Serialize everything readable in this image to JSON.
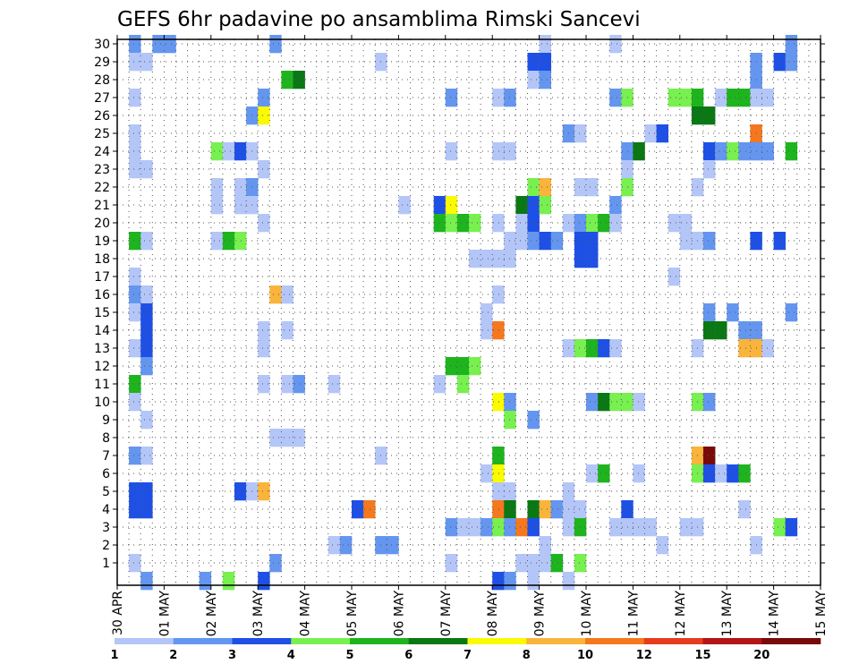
{
  "chart_data": {
    "type": "heatmap",
    "title": "GEFS 6hr padavine po ansamblima Rimski Sancevi",
    "xlabel": "",
    "ylabel": "",
    "x_ticks": [
      "30 APR",
      "01 MAY",
      "02 MAY",
      "03 MAY",
      "04 MAY",
      "05 MAY",
      "06 MAY",
      "07 MAY",
      "08 MAY",
      "09 MAY",
      "10 MAY",
      "11 MAY",
      "12 MAY",
      "13 MAY",
      "14 MAY",
      "15 MAY"
    ],
    "y_ticks": [
      "1",
      "2",
      "3",
      "4",
      "5",
      "6",
      "7",
      "8",
      "9",
      "10",
      "11",
      "12",
      "13",
      "14",
      "15",
      "16",
      "17",
      "18",
      "19",
      "20",
      "21",
      "22",
      "23",
      "24",
      "25",
      "26",
      "27",
      "28",
      "29",
      "30"
    ],
    "time_steps_per_day": 4,
    "ensemble_range": [
      0,
      30
    ],
    "grid": true,
    "legend_position": "bottom",
    "legend": {
      "colors": [
        "#b4c6f8",
        "#6496f0",
        "#1e50e6",
        "#78f050",
        "#1eb41e",
        "#0a7814",
        "#fafa00",
        "#fab43c",
        "#f5781e",
        "#e63c1e",
        "#b41414",
        "#780a0a"
      ],
      "labels": [
        "1",
        "2",
        "3",
        "4",
        "5",
        "6",
        "7",
        "8",
        "10",
        "12",
        "15",
        "20"
      ]
    },
    "cells": [
      [
        1,
        30,
        2
      ],
      [
        1,
        29,
        1
      ],
      [
        3,
        30,
        2
      ],
      [
        4,
        30,
        2
      ],
      [
        1,
        27,
        1
      ],
      [
        1,
        25,
        1
      ],
      [
        1,
        24,
        1
      ],
      [
        1,
        23,
        1
      ],
      [
        1,
        19,
        5
      ],
      [
        1,
        17,
        1
      ],
      [
        1,
        16,
        2
      ],
      [
        1,
        15,
        1
      ],
      [
        1,
        13,
        1
      ],
      [
        1,
        11,
        5
      ],
      [
        1,
        10,
        1
      ],
      [
        1,
        7,
        2
      ],
      [
        1,
        5,
        3
      ],
      [
        1,
        4,
        3
      ],
      [
        1,
        1,
        1
      ],
      [
        2,
        29,
        1
      ],
      [
        2,
        23,
        1
      ],
      [
        2,
        19,
        1
      ],
      [
        2,
        16,
        1
      ],
      [
        2,
        15,
        3
      ],
      [
        2,
        14,
        3
      ],
      [
        2,
        13,
        3
      ],
      [
        2,
        12,
        2
      ],
      [
        2,
        9,
        1
      ],
      [
        2,
        7,
        1
      ],
      [
        2,
        5,
        3
      ],
      [
        2,
        4,
        3
      ],
      [
        2,
        0,
        2
      ],
      [
        7,
        0,
        2
      ],
      [
        8,
        24,
        4
      ],
      [
        8,
        22,
        1
      ],
      [
        8,
        21,
        1
      ],
      [
        8,
        19,
        1
      ],
      [
        9,
        24,
        1
      ],
      [
        9,
        19,
        5
      ],
      [
        9,
        0,
        4
      ],
      [
        10,
        24,
        3
      ],
      [
        10,
        22,
        1
      ],
      [
        10,
        21,
        1
      ],
      [
        10,
        19,
        4
      ],
      [
        10,
        5,
        3
      ],
      [
        11,
        26,
        2
      ],
      [
        11,
        22,
        2
      ],
      [
        11,
        21,
        1
      ],
      [
        11,
        24,
        1
      ],
      [
        11,
        5,
        1
      ],
      [
        12,
        27,
        2
      ],
      [
        12,
        26,
        7
      ],
      [
        12,
        23,
        1
      ],
      [
        12,
        20,
        1
      ],
      [
        12,
        13,
        1
      ],
      [
        12,
        11,
        1
      ],
      [
        12,
        14,
        1
      ],
      [
        12,
        5,
        8
      ],
      [
        12,
        0,
        3
      ],
      [
        13,
        1,
        2
      ],
      [
        13,
        30,
        2
      ],
      [
        13,
        16,
        8
      ],
      [
        13,
        8,
        1
      ],
      [
        14,
        28,
        5
      ],
      [
        14,
        16,
        1
      ],
      [
        14,
        14,
        1
      ],
      [
        14,
        8,
        1
      ],
      [
        14,
        11,
        1
      ],
      [
        15,
        28,
        6
      ],
      [
        15,
        8,
        1
      ],
      [
        15,
        11,
        2
      ],
      [
        18,
        11,
        1
      ],
      [
        18,
        2,
        1
      ],
      [
        19,
        2,
        2
      ],
      [
        20,
        4,
        3
      ],
      [
        21,
        4,
        9
      ],
      [
        22,
        29,
        1
      ],
      [
        22,
        7,
        1
      ],
      [
        22,
        2,
        2
      ],
      [
        23,
        2,
        2
      ],
      [
        24,
        21,
        1
      ],
      [
        27,
        21,
        3
      ],
      [
        27,
        20,
        5
      ],
      [
        27,
        11,
        1
      ],
      [
        28,
        27,
        2
      ],
      [
        28,
        24,
        1
      ],
      [
        28,
        21,
        7
      ],
      [
        28,
        20,
        4
      ],
      [
        28,
        12,
        5
      ],
      [
        28,
        3,
        2
      ],
      [
        28,
        1,
        1
      ],
      [
        29,
        20,
        5
      ],
      [
        29,
        12,
        5
      ],
      [
        29,
        11,
        4
      ],
      [
        29,
        3,
        1
      ],
      [
        30,
        20,
        4
      ],
      [
        30,
        18,
        1
      ],
      [
        30,
        12,
        4
      ],
      [
        30,
        3,
        1
      ],
      [
        31,
        18,
        1
      ],
      [
        31,
        15,
        1
      ],
      [
        31,
        14,
        1
      ],
      [
        31,
        6,
        1
      ],
      [
        31,
        3,
        2
      ],
      [
        32,
        27,
        1
      ],
      [
        32,
        24,
        1
      ],
      [
        32,
        20,
        1
      ],
      [
        32,
        18,
        1
      ],
      [
        32,
        16,
        1
      ],
      [
        32,
        14,
        9
      ],
      [
        32,
        10,
        7
      ],
      [
        32,
        7,
        5
      ],
      [
        32,
        6,
        7
      ],
      [
        32,
        5,
        1
      ],
      [
        32,
        4,
        9
      ],
      [
        32,
        3,
        4
      ],
      [
        32,
        0,
        3
      ],
      [
        33,
        27,
        2
      ],
      [
        33,
        24,
        1
      ],
      [
        33,
        19,
        1
      ],
      [
        33,
        18,
        1
      ],
      [
        33,
        10,
        2
      ],
      [
        33,
        9,
        4
      ],
      [
        33,
        5,
        1
      ],
      [
        33,
        4,
        6
      ],
      [
        33,
        3,
        2
      ],
      [
        33,
        0,
        2
      ],
      [
        34,
        21,
        6
      ],
      [
        34,
        20,
        1
      ],
      [
        34,
        3,
        9
      ],
      [
        34,
        1,
        1
      ],
      [
        34,
        19,
        1
      ],
      [
        35,
        29,
        3
      ],
      [
        35,
        28,
        1
      ],
      [
        35,
        22,
        4
      ],
      [
        35,
        21,
        3
      ],
      [
        35,
        20,
        3
      ],
      [
        35,
        19,
        2
      ],
      [
        35,
        9,
        2
      ],
      [
        35,
        4,
        6
      ],
      [
        35,
        3,
        3
      ],
      [
        35,
        1,
        1
      ],
      [
        35,
        0,
        1
      ],
      [
        36,
        30,
        1
      ],
      [
        36,
        29,
        3
      ],
      [
        36,
        28,
        2
      ],
      [
        36,
        22,
        8
      ],
      [
        36,
        21,
        4
      ],
      [
        36,
        19,
        3
      ],
      [
        36,
        4,
        8
      ],
      [
        36,
        2,
        1
      ],
      [
        36,
        1,
        1
      ],
      [
        37,
        19,
        2
      ],
      [
        37,
        4,
        2
      ],
      [
        37,
        1,
        5
      ],
      [
        38,
        25,
        2
      ],
      [
        38,
        20,
        1
      ],
      [
        38,
        13,
        1
      ],
      [
        38,
        5,
        1
      ],
      [
        38,
        4,
        1
      ],
      [
        38,
        3,
        1
      ],
      [
        38,
        0,
        1
      ],
      [
        39,
        25,
        1
      ],
      [
        39,
        22,
        1
      ],
      [
        39,
        20,
        2
      ],
      [
        39,
        19,
        3
      ],
      [
        39,
        18,
        3
      ],
      [
        39,
        13,
        4
      ],
      [
        39,
        4,
        1
      ],
      [
        39,
        3,
        5
      ],
      [
        39,
        1,
        4
      ],
      [
        40,
        22,
        1
      ],
      [
        40,
        20,
        4
      ],
      [
        40,
        19,
        3
      ],
      [
        40,
        18,
        3
      ],
      [
        40,
        13,
        5
      ],
      [
        40,
        10,
        2
      ],
      [
        40,
        6,
        1
      ],
      [
        41,
        20,
        5
      ],
      [
        41,
        13,
        3
      ],
      [
        41,
        10,
        6
      ],
      [
        41,
        6,
        5
      ],
      [
        42,
        30,
        1
      ],
      [
        42,
        27,
        2
      ],
      [
        42,
        21,
        2
      ],
      [
        42,
        20,
        1
      ],
      [
        42,
        13,
        1
      ],
      [
        42,
        10,
        4
      ],
      [
        42,
        3,
        1
      ],
      [
        43,
        27,
        4
      ],
      [
        43,
        24,
        2
      ],
      [
        43,
        23,
        1
      ],
      [
        43,
        22,
        4
      ],
      [
        43,
        10,
        4
      ],
      [
        43,
        4,
        3
      ],
      [
        43,
        3,
        1
      ],
      [
        44,
        24,
        6
      ],
      [
        44,
        10,
        1
      ],
      [
        44,
        6,
        1
      ],
      [
        44,
        3,
        1
      ],
      [
        45,
        25,
        1
      ],
      [
        45,
        3,
        1
      ],
      [
        46,
        25,
        3
      ],
      [
        46,
        2,
        1
      ],
      [
        47,
        27,
        4
      ],
      [
        47,
        20,
        1
      ],
      [
        47,
        17,
        1
      ],
      [
        48,
        27,
        4
      ],
      [
        48,
        20,
        1
      ],
      [
        48,
        19,
        1
      ],
      [
        48,
        3,
        1
      ],
      [
        49,
        27,
        5
      ],
      [
        49,
        26,
        6
      ],
      [
        49,
        22,
        1
      ],
      [
        49,
        19,
        1
      ],
      [
        49,
        13,
        1
      ],
      [
        49,
        10,
        4
      ],
      [
        49,
        7,
        8
      ],
      [
        49,
        6,
        4
      ],
      [
        49,
        3,
        1
      ],
      [
        50,
        26,
        6
      ],
      [
        50,
        24,
        3
      ],
      [
        50,
        23,
        1
      ],
      [
        50,
        19,
        2
      ],
      [
        50,
        15,
        2
      ],
      [
        50,
        14,
        6
      ],
      [
        50,
        10,
        2
      ],
      [
        50,
        7,
        12
      ],
      [
        50,
        6,
        3
      ],
      [
        51,
        27,
        1
      ],
      [
        51,
        24,
        2
      ],
      [
        51,
        14,
        6
      ],
      [
        51,
        6,
        1
      ],
      [
        52,
        27,
        5
      ],
      [
        52,
        24,
        4
      ],
      [
        52,
        15,
        2
      ],
      [
        52,
        6,
        3
      ],
      [
        53,
        27,
        5
      ],
      [
        53,
        24,
        2
      ],
      [
        53,
        14,
        2
      ],
      [
        53,
        13,
        8
      ],
      [
        53,
        6,
        5
      ],
      [
        53,
        4,
        1
      ],
      [
        54,
        29,
        2
      ],
      [
        54,
        28,
        2
      ],
      [
        54,
        27,
        1
      ],
      [
        54,
        25,
        9
      ],
      [
        54,
        24,
        2
      ],
      [
        54,
        19,
        3
      ],
      [
        54,
        14,
        2
      ],
      [
        54,
        13,
        8
      ],
      [
        54,
        2,
        1
      ],
      [
        55,
        27,
        1
      ],
      [
        55,
        24,
        2
      ],
      [
        55,
        13,
        1
      ],
      [
        56,
        29,
        3
      ],
      [
        56,
        19,
        3
      ],
      [
        56,
        3,
        4
      ],
      [
        57,
        30,
        2
      ],
      [
        57,
        29,
        2
      ],
      [
        57,
        24,
        5
      ],
      [
        57,
        15,
        2
      ],
      [
        57,
        3,
        3
      ]
    ]
  }
}
